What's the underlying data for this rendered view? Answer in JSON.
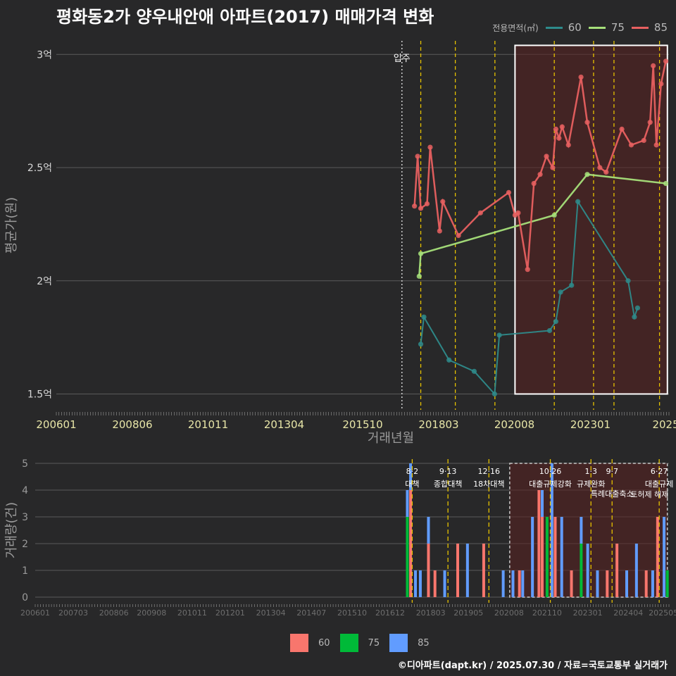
{
  "title": "평화동2가 양우내안애 아파트(2017) 매매가격 변화",
  "credit": "©디아파트(dapt.kr) / 2025.07.30 / 자료=국토교통부 실거래가",
  "colors": {
    "background": "#282829",
    "s60": "#2e8b8b",
    "s75": "#a6e07a",
    "s85": "#e86060",
    "bar60": "#f8766d",
    "bar75": "#00ba38",
    "bar85": "#619cff",
    "policy": "#e6c200",
    "highlight": "#5a2020"
  },
  "chart_data": [
    {
      "type": "line",
      "title": "평화동2가 양우내안애 아파트(2017) 매매가격 변화",
      "xlabel": "거래년월",
      "ylabel": "평균가(원)",
      "legend_title": "전용면적(㎡)",
      "x_ticks": [
        "200601",
        "200806",
        "201011",
        "201304",
        "201510",
        "201803",
        "202008",
        "202301",
        "2025"
      ],
      "y_ticks": [
        {
          "value": 3.0,
          "label": "3억"
        },
        {
          "value": 2.5,
          "label": "2.5억"
        },
        {
          "value": 2.0,
          "label": "2억"
        },
        {
          "value": 1.5,
          "label": "1.5억"
        }
      ],
      "ylim": [
        1.43,
        3.06
      ],
      "xlim": [
        2006.0,
        2025.5
      ],
      "annotation": {
        "x": 2017.0,
        "label": "입주"
      },
      "policy_lines": [
        2017.6,
        2018.7,
        2019.96,
        2021.85,
        2023.1,
        2023.75,
        2025.2
      ],
      "highlight_range": [
        2020.6,
        2025.45
      ],
      "series": [
        {
          "name": "60",
          "points": [
            [
              2017.6,
              1.72
            ],
            [
              2017.7,
              1.84
            ],
            [
              2018.5,
              1.65
            ],
            [
              2019.3,
              1.6
            ],
            [
              2019.95,
              1.5
            ],
            [
              2020.1,
              1.76
            ],
            [
              2021.7,
              1.78
            ],
            [
              2021.9,
              1.82
            ],
            [
              2022.05,
              1.95
            ],
            [
              2022.4,
              1.98
            ],
            [
              2022.6,
              2.35
            ],
            [
              2024.2,
              2.0
            ],
            [
              2024.4,
              1.84
            ],
            [
              2024.5,
              1.88
            ]
          ]
        },
        {
          "name": "75",
          "points": [
            [
              2017.55,
              2.02
            ],
            [
              2017.6,
              2.12
            ],
            [
              2021.85,
              2.29
            ],
            [
              2022.9,
              2.47
            ],
            [
              2025.4,
              2.43
            ]
          ]
        },
        {
          "name": "85",
          "points": [
            [
              2017.4,
              2.33
            ],
            [
              2017.5,
              2.55
            ],
            [
              2017.6,
              2.32
            ],
            [
              2017.8,
              2.34
            ],
            [
              2017.9,
              2.59
            ],
            [
              2018.2,
              2.22
            ],
            [
              2018.3,
              2.35
            ],
            [
              2018.8,
              2.2
            ],
            [
              2019.5,
              2.3
            ],
            [
              2020.4,
              2.39
            ],
            [
              2020.6,
              2.29
            ],
            [
              2020.7,
              2.3
            ],
            [
              2021.0,
              2.05
            ],
            [
              2021.2,
              2.43
            ],
            [
              2021.4,
              2.47
            ],
            [
              2021.6,
              2.55
            ],
            [
              2021.8,
              2.5
            ],
            [
              2021.9,
              2.67
            ],
            [
              2022.0,
              2.63
            ],
            [
              2022.1,
              2.68
            ],
            [
              2022.3,
              2.6
            ],
            [
              2022.7,
              2.9
            ],
            [
              2022.9,
              2.7
            ],
            [
              2023.3,
              2.5
            ],
            [
              2023.5,
              2.48
            ],
            [
              2024.0,
              2.67
            ],
            [
              2024.3,
              2.6
            ],
            [
              2024.7,
              2.62
            ],
            [
              2024.9,
              2.7
            ],
            [
              2025.0,
              2.95
            ],
            [
              2025.1,
              2.6
            ],
            [
              2025.25,
              2.87
            ],
            [
              2025.4,
              2.97
            ]
          ]
        }
      ]
    },
    {
      "type": "bar",
      "stacked": true,
      "ylabel": "거래량(건)",
      "x_ticks": [
        "200601",
        "200703",
        "200806",
        "200908",
        "201011",
        "201201",
        "201304",
        "201407",
        "201510",
        "201612",
        "201803",
        "201905",
        "202008",
        "202110",
        "202301",
        "202404",
        "202505"
      ],
      "y_ticks": [
        0,
        1,
        2,
        3,
        4,
        5
      ],
      "ylim": [
        0,
        5
      ],
      "policies": [
        {
          "x": 2017.6,
          "date": "8·2",
          "label": "대책"
        },
        {
          "x": 2018.7,
          "date": "9·13",
          "label": "종합대책"
        },
        {
          "x": 2019.96,
          "date": "12·16",
          "label": "18차대책"
        },
        {
          "x": 2021.85,
          "date": "10·26",
          "label": "대출규제강화"
        },
        {
          "x": 2023.1,
          "date": "1·3",
          "label": "규제완화"
        },
        {
          "x": 2023.75,
          "date": "9·7",
          "label": "특례대출축소"
        },
        {
          "x": 2025.2,
          "date": "6·27",
          "label": "대출규제"
        }
      ],
      "extra_labels": [
        "토허제 해제"
      ],
      "bars": [
        [
          2017.45,
          0,
          3,
          1
        ],
        [
          2017.55,
          4,
          0,
          1
        ],
        [
          2017.7,
          0,
          0,
          1
        ],
        [
          2017.85,
          0,
          0,
          1
        ],
        [
          2018.1,
          2,
          0,
          1
        ],
        [
          2018.3,
          1,
          0,
          0
        ],
        [
          2018.6,
          0,
          0,
          1
        ],
        [
          2019.0,
          2,
          0,
          0
        ],
        [
          2019.3,
          0,
          0,
          2
        ],
        [
          2019.8,
          2,
          0,
          0
        ],
        [
          2020.4,
          0,
          0,
          1
        ],
        [
          2020.7,
          0,
          0,
          1
        ],
        [
          2020.9,
          1,
          0,
          0
        ],
        [
          2021.0,
          0,
          0,
          1
        ],
        [
          2021.3,
          0,
          0,
          3
        ],
        [
          2021.5,
          4,
          0,
          0
        ],
        [
          2021.6,
          3,
          0,
          1
        ],
        [
          2021.75,
          0,
          3,
          0
        ],
        [
          2021.9,
          0,
          0,
          5
        ],
        [
          2022.0,
          3,
          0,
          0
        ],
        [
          2022.2,
          0,
          0,
          3
        ],
        [
          2022.5,
          1,
          0,
          0
        ],
        [
          2022.8,
          0,
          2,
          1
        ],
        [
          2023.0,
          0,
          0,
          2
        ],
        [
          2023.3,
          0,
          0,
          1
        ],
        [
          2023.6,
          1,
          0,
          0
        ],
        [
          2023.9,
          2,
          0,
          0
        ],
        [
          2024.2,
          0,
          0,
          1
        ],
        [
          2024.5,
          0,
          0,
          2
        ],
        [
          2024.8,
          1,
          0,
          0
        ],
        [
          2025.0,
          0,
          0,
          1
        ],
        [
          2025.15,
          3,
          0,
          0
        ],
        [
          2025.35,
          0,
          0,
          3
        ],
        [
          2025.45,
          0,
          1,
          0
        ]
      ]
    }
  ]
}
